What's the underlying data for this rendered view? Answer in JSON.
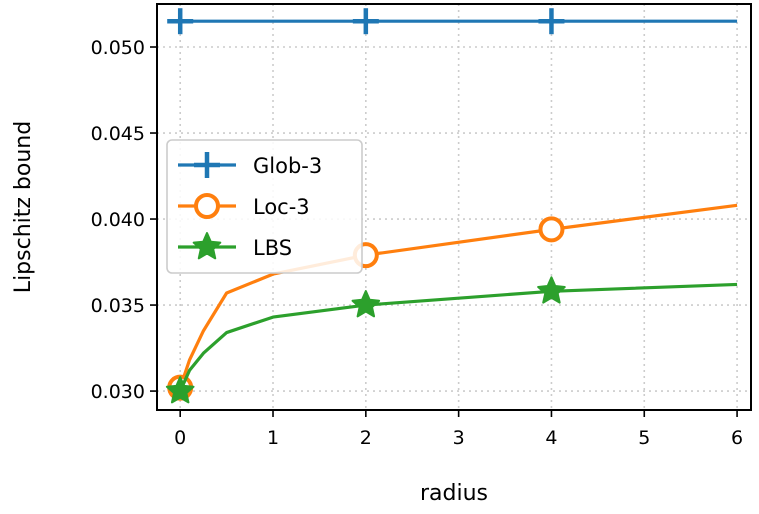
{
  "chart_data": {
    "type": "line",
    "xlabel": "radius",
    "ylabel": "Lipschitz bound",
    "xlim": [
      -0.25,
      6.15
    ],
    "ylim": [
      0.0289,
      0.0525
    ],
    "xticks": [
      0,
      1,
      2,
      3,
      4,
      5,
      6
    ],
    "xtick_labels": [
      "0",
      "1",
      "2",
      "3",
      "4",
      "5",
      "6"
    ],
    "yticks": [
      0.03,
      0.035,
      0.04,
      0.045,
      0.05
    ],
    "ytick_labels": [
      "0.030",
      "0.035",
      "0.040",
      "0.045",
      "0.050"
    ],
    "grid": true,
    "legend_position": "center-left",
    "series": [
      {
        "name": "Glob-3",
        "color": "#1f77b4",
        "marker": "plus",
        "x": [
          0,
          2,
          4,
          6
        ],
        "y": [
          0.0515,
          0.0515,
          0.0515,
          0.0515
        ],
        "marker_x": [
          0,
          2,
          4
        ]
      },
      {
        "name": "Loc-3",
        "color": "#ff7f0e",
        "marker": "circle",
        "x": [
          0,
          0.1,
          0.25,
          0.5,
          1,
          2,
          4,
          6
        ],
        "y": [
          0.0302,
          0.0318,
          0.0335,
          0.0357,
          0.0368,
          0.0379,
          0.0394,
          0.0408
        ],
        "marker_x": [
          0,
          2,
          4
        ]
      },
      {
        "name": "LBS",
        "color": "#2ca02c",
        "marker": "star",
        "x": [
          0,
          0.1,
          0.25,
          0.5,
          1,
          2,
          4,
          6
        ],
        "y": [
          0.03,
          0.0312,
          0.0322,
          0.0334,
          0.0343,
          0.035,
          0.0358,
          0.0362
        ],
        "marker_x": [
          0,
          2,
          4
        ]
      }
    ]
  }
}
